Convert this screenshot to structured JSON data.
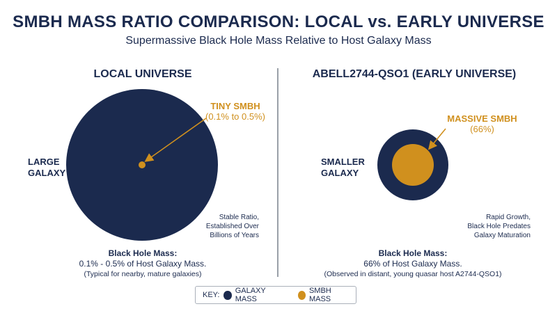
{
  "header": {
    "title": "SMBH MASS RATIO COMPARISON: LOCAL vs. EARLY UNIVERSE",
    "subtitle": "Supermassive Black Hole Mass Relative to Host Galaxy Mass"
  },
  "colors": {
    "galaxy": "#1b2a4e",
    "smbh": "#d0901e"
  },
  "local": {
    "title": "LOCAL UNIVERSE",
    "galaxy_label_line1": "LARGE",
    "galaxy_label_line2": "GALAXY",
    "smbh_label": "TINY SMBH",
    "smbh_range": "(0.1% to 0.5%)",
    "note_line1": "Stable Ratio,",
    "note_line2": "Established Over",
    "note_line3": "Billions of Years",
    "summary_line1": "Black Hole Mass:",
    "summary_line2": "0.1% - 0.5% of Host Galaxy Mass.",
    "summary_line3": "(Typical for nearby, mature galaxies)"
  },
  "early": {
    "title": "ABELL2744-QSO1 (EARLY UNIVERSE)",
    "galaxy_label_line1": "SMALLER",
    "galaxy_label_line2": "GALAXY",
    "smbh_label": "MASSIVE SMBH",
    "smbh_range": "(66%)",
    "note_line1": "Rapid Growth,",
    "note_line2": "Black Hole Predates",
    "note_line3": "Galaxy Maturation",
    "summary_line1": "Black Hole Mass:",
    "summary_line2": "66% of Host Galaxy Mass.",
    "summary_line3": "(Observed in distant, young quasar host A2744-QSO1)"
  },
  "key": {
    "label": "KEY:",
    "galaxy": "GALAXY MASS",
    "smbh": "SMBH MASS"
  }
}
